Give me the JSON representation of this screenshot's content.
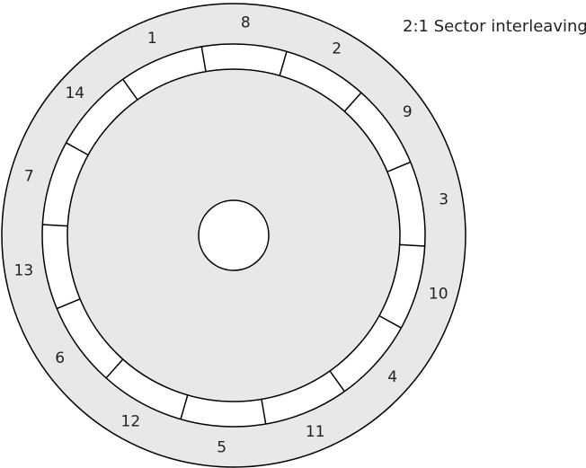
{
  "title": "2:1 Sector interleaving",
  "sector_labels": [
    "1",
    "8",
    "2",
    "9",
    "3",
    "10",
    "4",
    "11",
    "5",
    "12",
    "6",
    "13",
    "7",
    "14"
  ],
  "colors": {
    "disk_fill": "#e8e8ea",
    "track_fill": "#ffffff",
    "hub_fill": "#ffffff",
    "stroke": "#000000"
  }
}
